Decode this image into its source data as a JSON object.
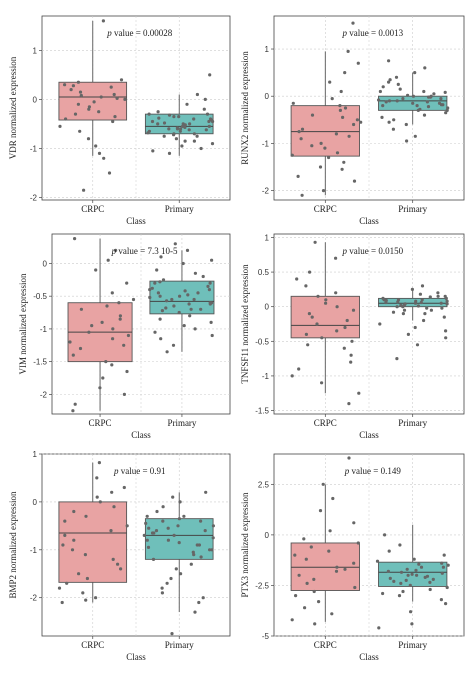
{
  "colors": {
    "crpc_fill": "#e8a3a3",
    "primary_fill": "#6fbfba",
    "points": "#666666",
    "grid": "#cccccc",
    "box_edge": "#555555"
  },
  "chart_data": [
    {
      "type": "box",
      "ylabel": "VDR normalized expression",
      "xlabel": "Class",
      "categories": [
        "CRPC",
        "Primary"
      ],
      "ylim": [
        -2.05,
        1.7
      ],
      "yticks": [
        1,
        0,
        -1,
        -2
      ],
      "annotation": {
        "italic": "p",
        "text": " value = 0.00028"
      },
      "boxes": [
        {
          "category": "CRPC",
          "q1": -0.42,
          "median": 0.05,
          "q3": 0.35,
          "whisker_low": -1.15,
          "whisker_high": 1.6,
          "points": [
            1.6,
            0.4,
            0.35,
            0.3,
            0.28,
            0.25,
            0.2,
            0.15,
            0.1,
            0.08,
            0.05,
            0.02,
            0.0,
            -0.05,
            -0.1,
            -0.15,
            -0.2,
            -0.25,
            -0.3,
            -0.35,
            -0.4,
            -0.45,
            -0.55,
            -0.65,
            -0.8,
            -0.95,
            -1.1,
            -1.2,
            -1.5,
            -1.85
          ]
        },
        {
          "category": "Primary",
          "q1": -0.7,
          "median": -0.55,
          "q3": -0.3,
          "whisker_low": -1.15,
          "whisker_high": 0.1,
          "points": [
            0.5,
            0.1,
            0.0,
            -0.1,
            -0.2,
            -0.25,
            -0.3,
            -0.32,
            -0.35,
            -0.38,
            -0.4,
            -0.42,
            -0.45,
            -0.48,
            -0.5,
            -0.52,
            -0.55,
            -0.57,
            -0.6,
            -0.62,
            -0.65,
            -0.68,
            -0.7,
            -0.72,
            -0.75,
            -0.8,
            -0.85,
            -0.9,
            -0.95,
            -1.0,
            -1.05,
            -1.1,
            -0.45,
            -0.5,
            -0.6,
            -0.3,
            -0.4,
            -0.55,
            -0.65,
            -0.7,
            -0.35,
            -0.5,
            -0.6,
            -0.58,
            -0.45,
            -0.62,
            -0.75,
            -0.85
          ]
        }
      ]
    },
    {
      "type": "box",
      "ylabel": "RUNX2 normalized expression",
      "xlabel": "Class",
      "categories": [
        "CRPC",
        "Primary"
      ],
      "ylim": [
        -2.2,
        1.7
      ],
      "yticks": [
        1,
        0,
        -1,
        -2
      ],
      "annotation": {
        "italic": "p",
        "text": " value = 0.0013"
      },
      "boxes": [
        {
          "category": "CRPC",
          "q1": -1.27,
          "median": -0.75,
          "q3": -0.2,
          "whisker_low": -2.1,
          "whisker_high": 0.95,
          "points": [
            1.55,
            0.95,
            0.7,
            0.5,
            0.3,
            0.1,
            -0.05,
            -0.15,
            -0.2,
            -0.25,
            -0.3,
            -0.4,
            -0.45,
            -0.5,
            -0.55,
            -0.6,
            -0.7,
            -0.75,
            -0.8,
            -0.85,
            -0.9,
            -1.0,
            -1.05,
            -1.1,
            -1.2,
            -1.25,
            -1.3,
            -1.4,
            -1.5,
            -1.55,
            -1.7,
            -1.8,
            -2.0,
            -2.1
          ]
        },
        {
          "category": "Primary",
          "q1": -0.3,
          "median": -0.1,
          "q3": 0.0,
          "whisker_low": -0.6,
          "whisker_high": 0.5,
          "points": [
            0.75,
            0.6,
            0.5,
            0.4,
            0.35,
            0.3,
            0.25,
            0.2,
            0.15,
            0.1,
            0.05,
            0.02,
            0.0,
            -0.02,
            -0.05,
            -0.08,
            -0.1,
            -0.12,
            -0.15,
            -0.18,
            -0.2,
            -0.22,
            -0.25,
            -0.28,
            -0.3,
            -0.35,
            -0.4,
            -0.45,
            -0.5,
            -0.55,
            -0.6,
            -0.7,
            -0.85,
            -0.95,
            -0.05,
            -0.1,
            -0.15,
            0.1,
            0.0,
            -0.2,
            -0.12,
            0.08,
            -0.3,
            -0.02,
            -0.18
          ]
        }
      ]
    },
    {
      "type": "box",
      "ylabel": "VIM normalized expression",
      "xlabel": "Class",
      "categories": [
        "CRPC",
        "Primary"
      ],
      "ylim": [
        -2.3,
        0.45
      ],
      "yticks": [
        0.0,
        -0.5,
        -1.0,
        -1.5,
        -2.0
      ],
      "annotation": {
        "italic": "p",
        "text": " value = 7.3 10-5"
      },
      "boxes": [
        {
          "category": "CRPC",
          "q1": -1.5,
          "median": -1.05,
          "q3": -0.6,
          "whisker_low": -2.25,
          "whisker_high": 0.38,
          "points": [
            0.38,
            0.2,
            0.05,
            -0.1,
            -0.3,
            -0.45,
            -0.55,
            -0.6,
            -0.65,
            -0.7,
            -0.8,
            -0.85,
            -0.9,
            -0.95,
            -1.0,
            -1.05,
            -1.1,
            -1.15,
            -1.2,
            -1.25,
            -1.3,
            -1.4,
            -1.5,
            -1.55,
            -1.65,
            -1.75,
            -1.9,
            -2.0,
            -2.15,
            -2.25
          ]
        },
        {
          "category": "Primary",
          "q1": -0.77,
          "median": -0.58,
          "q3": -0.27,
          "whisker_low": -1.35,
          "whisker_high": 0.2,
          "points": [
            0.3,
            0.2,
            0.1,
            0.05,
            0.0,
            -0.1,
            -0.15,
            -0.2,
            -0.25,
            -0.3,
            -0.35,
            -0.4,
            -0.42,
            -0.45,
            -0.48,
            -0.5,
            -0.52,
            -0.55,
            -0.57,
            -0.6,
            -0.62,
            -0.65,
            -0.68,
            -0.7,
            -0.72,
            -0.75,
            -0.8,
            -0.85,
            -0.9,
            -0.95,
            -1.0,
            -1.05,
            -1.1,
            -1.15,
            -1.25,
            -1.35,
            -0.38,
            -0.5,
            -0.6,
            -0.45,
            -0.3,
            -0.55,
            -0.7,
            -0.4,
            -0.62,
            -0.28
          ]
        }
      ]
    },
    {
      "type": "box",
      "ylabel": "TNFSF11 normalized expression",
      "xlabel": "Class",
      "categories": [
        "CRPC",
        "Primary"
      ],
      "ylim": [
        -1.55,
        1.05
      ],
      "yticks": [
        1.0,
        0.5,
        0.0,
        -0.5,
        -1.0,
        -1.5
      ],
      "annotation": {
        "italic": "p",
        "text": " value = 0.0150"
      },
      "boxes": [
        {
          "category": "CRPC",
          "q1": -0.45,
          "median": -0.27,
          "q3": 0.15,
          "whisker_low": -1.25,
          "whisker_high": 0.93,
          "points": [
            0.93,
            0.7,
            0.5,
            0.4,
            0.3,
            0.2,
            0.15,
            0.1,
            0.05,
            0.0,
            -0.05,
            -0.1,
            -0.15,
            -0.2,
            -0.25,
            -0.3,
            -0.35,
            -0.4,
            -0.45,
            -0.5,
            -0.55,
            -0.6,
            -0.7,
            -0.8,
            -0.9,
            -1.0,
            -1.1,
            -1.25,
            -1.4
          ]
        },
        {
          "category": "Primary",
          "q1": 0.0,
          "median": 0.05,
          "q3": 0.12,
          "whisker_low": -0.2,
          "whisker_high": 0.25,
          "points": [
            0.3,
            0.25,
            0.2,
            0.18,
            0.15,
            0.12,
            0.1,
            0.08,
            0.06,
            0.05,
            0.04,
            0.03,
            0.02,
            0.01,
            0.0,
            -0.02,
            -0.05,
            -0.08,
            -0.1,
            -0.15,
            -0.2,
            -0.25,
            -0.3,
            -0.35,
            -0.4,
            -0.45,
            -0.55,
            -0.75,
            0.1,
            0.05,
            0.08,
            0.12,
            0.0,
            0.15,
            -0.05,
            0.02,
            0.06,
            0.1,
            -0.1,
            0.04,
            0.09,
            0.14,
            -0.02,
            0.07
          ]
        }
      ]
    },
    {
      "type": "box",
      "ylabel": "BMP2 normalized expression",
      "xlabel": "Class",
      "categories": [
        "CRPC",
        "Primary"
      ],
      "ylim": [
        -2.8,
        1.0
      ],
      "yticks": [
        1,
        0,
        -1,
        -2
      ],
      "annotation": {
        "italic": "p",
        "text": " value = 0.91"
      },
      "boxes": [
        {
          "category": "CRPC",
          "q1": -1.68,
          "median": -0.65,
          "q3": 0.0,
          "whisker_low": -2.1,
          "whisker_high": 0.82,
          "points": [
            0.82,
            0.5,
            0.3,
            0.2,
            0.1,
            0.0,
            -0.1,
            -0.2,
            -0.3,
            -0.4,
            -0.5,
            -0.6,
            -0.7,
            -0.8,
            -0.9,
            -1.0,
            -1.1,
            -1.2,
            -1.3,
            -1.4,
            -1.5,
            -1.6,
            -1.7,
            -1.8,
            -1.9,
            -2.0,
            -2.05,
            -2.1
          ]
        },
        {
          "category": "Primary",
          "q1": -1.2,
          "median": -0.7,
          "q3": -0.35,
          "whisker_low": -2.3,
          "whisker_high": 0.2,
          "points": [
            0.2,
            0.1,
            0.0,
            -0.1,
            -0.2,
            -0.3,
            -0.35,
            -0.4,
            -0.45,
            -0.5,
            -0.55,
            -0.6,
            -0.65,
            -0.7,
            -0.75,
            -0.8,
            -0.85,
            -0.9,
            -0.95,
            -1.0,
            -1.05,
            -1.1,
            -1.15,
            -1.2,
            -1.3,
            -1.4,
            -1.5,
            -1.6,
            -1.7,
            -1.8,
            -1.9,
            -2.0,
            -2.1,
            -2.3,
            -2.75,
            -0.5,
            -0.6,
            -0.7,
            -0.4,
            -0.8,
            -0.55,
            -0.65,
            -0.9,
            -0.3,
            -1.0
          ]
        }
      ]
    },
    {
      "type": "box",
      "ylabel": "PTX3 normalized expression",
      "xlabel": "Class",
      "categories": [
        "CRPC",
        "Primary"
      ],
      "ylim": [
        -5.0,
        4.0
      ],
      "yticks": [
        2.5,
        0.0,
        -2.5,
        -5.0
      ],
      "annotation": {
        "italic": "p",
        "text": " value = 0.149"
      },
      "boxes": [
        {
          "category": "CRPC",
          "q1": -2.75,
          "median": -1.6,
          "q3": -0.4,
          "whisker_low": -4.3,
          "whisker_high": 2.5,
          "points": [
            3.8,
            2.5,
            1.8,
            1.2,
            0.6,
            0.2,
            -0.2,
            -0.4,
            -0.6,
            -0.8,
            -1.0,
            -1.2,
            -1.4,
            -1.6,
            -1.7,
            -1.8,
            -2.0,
            -2.2,
            -2.4,
            -2.6,
            -2.8,
            -3.0,
            -3.3,
            -3.6,
            -3.9,
            -4.2,
            -4.4
          ]
        },
        {
          "category": "Primary",
          "q1": -2.55,
          "median": -1.85,
          "q3": -1.35,
          "whisker_low": -3.3,
          "whisker_high": 0.5,
          "points": [
            0.0,
            -0.5,
            -0.8,
            -1.0,
            -1.2,
            -1.3,
            -1.4,
            -1.5,
            -1.6,
            -1.7,
            -1.8,
            -1.85,
            -1.9,
            -2.0,
            -2.1,
            -2.2,
            -2.3,
            -2.4,
            -2.5,
            -2.6,
            -2.7,
            -2.8,
            -2.9,
            -3.0,
            -3.2,
            -3.4,
            -3.8,
            -4.4,
            -4.6,
            -1.6,
            -1.75,
            -2.05,
            -2.15,
            -1.95,
            -2.25,
            -1.45,
            -2.35,
            -2.0
          ]
        }
      ]
    }
  ]
}
